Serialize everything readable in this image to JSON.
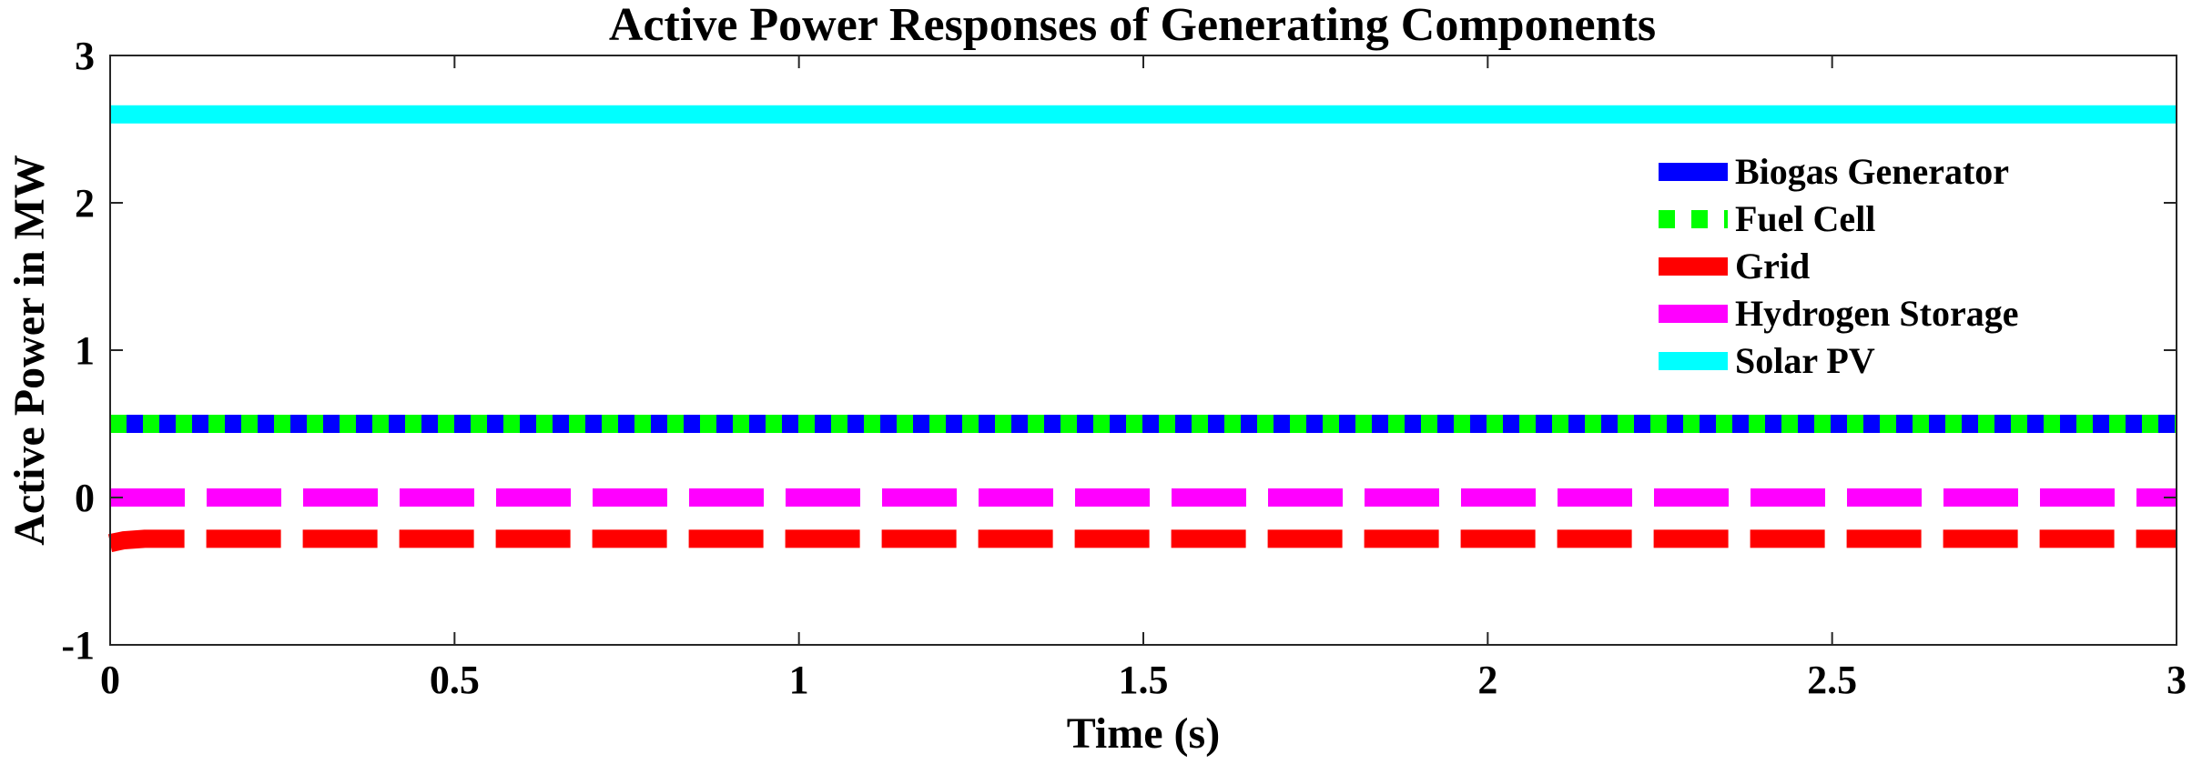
{
  "chart_data": {
    "type": "line",
    "title": "Active Power Responses of Generating Components",
    "xlabel": "Time (s)",
    "ylabel": "Active Power in MW",
    "xlim": [
      0,
      3
    ],
    "ylim": [
      -1,
      3
    ],
    "xticks": [
      0,
      0.5,
      1,
      1.5,
      2,
      2.5,
      3
    ],
    "xtick_labels": [
      "0",
      "0.5",
      "1",
      "1.5",
      "2",
      "2.5",
      "3"
    ],
    "yticks": [
      -1,
      0,
      1,
      2,
      3
    ],
    "ytick_labels": [
      "-1",
      "0",
      "1",
      "2",
      "3"
    ],
    "grid": false,
    "legend_position": "top-right",
    "series": [
      {
        "name": "Biogas Generator",
        "color": "#0000ff",
        "style": "solid",
        "x": [
          0,
          3
        ],
        "y": [
          0.5,
          0.5
        ]
      },
      {
        "name": "Fuel Cell",
        "color": "#00ff00",
        "style": "dotted",
        "x": [
          0,
          3
        ],
        "y": [
          0.5,
          0.5
        ]
      },
      {
        "name": "Grid",
        "color": "#ff0000",
        "style": "dashed",
        "x": [
          0,
          0.02,
          0.05,
          0.1,
          3
        ],
        "y": [
          -0.31,
          -0.29,
          -0.28,
          -0.28,
          -0.28
        ]
      },
      {
        "name": "Hydrogen Storage",
        "color": "#ff00ff",
        "style": "dashed",
        "x": [
          0,
          3
        ],
        "y": [
          0,
          0
        ]
      },
      {
        "name": "Solar PV",
        "color": "#00ffff",
        "style": "solid",
        "x": [
          0,
          3
        ],
        "y": [
          2.6,
          2.6
        ]
      }
    ]
  }
}
